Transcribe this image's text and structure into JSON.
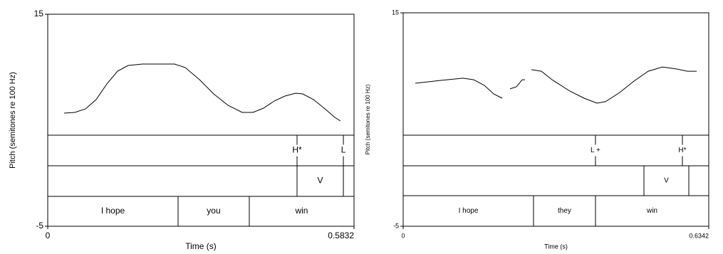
{
  "chart_data": [
    {
      "type": "line",
      "xlabel": "Time (s)",
      "ylabel": "Pitch (semitones re 100 Hz)",
      "xlim": [
        0,
        0.5832
      ],
      "xticks": [
        0,
        0.5832
      ],
      "ylim": [
        -5,
        15
      ],
      "yticks": [
        -5,
        15
      ],
      "color": "#000000",
      "x": [
        0.0312,
        0.0515,
        0.0719,
        0.0922,
        0.1126,
        0.1329,
        0.1533,
        0.1804,
        0.2075,
        0.2414,
        0.2618,
        0.2889,
        0.316,
        0.3431,
        0.3703,
        0.3906,
        0.411,
        0.4313,
        0.4516,
        0.472,
        0.4856,
        0.5059,
        0.5262,
        0.5466,
        0.5574
      ],
      "values": [
        5.67,
        5.74,
        6.07,
        6.95,
        8.42,
        9.63,
        10.17,
        10.3,
        10.3,
        10.3,
        9.97,
        8.83,
        7.48,
        6.41,
        5.74,
        5.74,
        6.14,
        6.81,
        7.28,
        7.55,
        7.48,
        6.95,
        6.14,
        5.27,
        4.93
      ],
      "tiers": [
        {
          "points": [
            0.4747,
            0.5629
          ],
          "labels": [
            "H*",
            "L"
          ]
        },
        {
          "boundaries": [
            0.4747,
            0.5629
          ],
          "labels": [
            null,
            "V",
            null
          ]
        },
        {
          "boundaries": [
            0.2482,
            0.3838
          ],
          "labels": [
            "I hope",
            "you",
            "win"
          ]
        }
      ]
    },
    {
      "type": "line",
      "xlabel": "Time (s)",
      "ylabel": "Pitch (semitones re 100 Hz)",
      "xlim": [
        0,
        0.6342
      ],
      "xticks": [
        0,
        0.6342
      ],
      "ylim": [
        -5,
        15
      ],
      "yticks": [
        -5,
        15
      ],
      "color": "#000000",
      "x": [
        0.0251,
        0.0503,
        0.0798,
        0.1242,
        0.1464,
        0.1685,
        0.1877,
        0.2055,
        0.2136,
        0.2217,
        0.235,
        0.2469,
        0.2528,
        0.2595,
        0.2661,
        0.2868,
        0.309,
        0.3459,
        0.3755,
        0.4021,
        0.4198,
        0.4494,
        0.479,
        0.5085,
        0.5381,
        0.5677,
        0.5898,
        0.6091
      ],
      "values": [
        8.4,
        8.53,
        8.67,
        8.87,
        8.73,
        8.2,
        7.4,
        7.0,
        null,
        7.87,
        8.07,
        8.73,
        8.73,
        null,
        9.67,
        9.53,
        8.73,
        7.67,
        7.0,
        6.53,
        6.67,
        7.53,
        8.6,
        9.53,
        9.93,
        9.73,
        9.53,
        9.53
      ],
      "tiers": [
        {
          "points": [
            0.3991,
            0.5795
          ],
          "labels": [
            "L +",
            "H*"
          ]
        },
        {
          "boundaries": [
            0.4997,
            0.5928
          ],
          "labels": [
            null,
            "V",
            null
          ]
        },
        {
          "boundaries": [
            0.2705,
            0.3991
          ],
          "labels": [
            "I hope",
            "they",
            "win"
          ]
        }
      ]
    }
  ]
}
